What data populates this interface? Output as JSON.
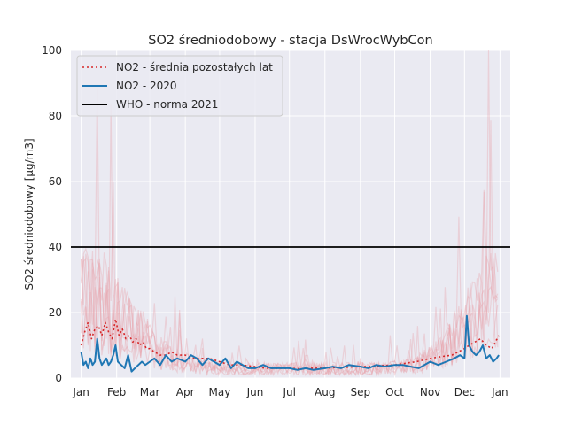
{
  "chart_data": {
    "type": "line",
    "title": "SO2 średniodobowy - stacja DsWrocWybCon",
    "xlabel": "",
    "ylabel": "SO2 średniodobowy [µg/m3]",
    "ylim": [
      0,
      100
    ],
    "xlim": [
      "2019-12-23",
      "2021-01-10"
    ],
    "yticks": [
      0,
      20,
      40,
      60,
      80,
      100
    ],
    "xticks": [
      {
        "date": "2020-01-01",
        "label": "Jan"
      },
      {
        "date": "2020-02-01",
        "label": "Feb"
      },
      {
        "date": "2020-03-01",
        "label": "Mar"
      },
      {
        "date": "2020-04-01",
        "label": "Apr"
      },
      {
        "date": "2020-05-01",
        "label": "May"
      },
      {
        "date": "2020-06-01",
        "label": "Jun"
      },
      {
        "date": "2020-07-01",
        "label": "Jul"
      },
      {
        "date": "2020-08-01",
        "label": "Aug"
      },
      {
        "date": "2020-09-01",
        "label": "Sep"
      },
      {
        "date": "2020-10-01",
        "label": "Oct"
      },
      {
        "date": "2020-11-01",
        "label": "Nov"
      },
      {
        "date": "2020-12-01",
        "label": "Dec"
      },
      {
        "date": "2021-01-01",
        "label": "Jan"
      }
    ],
    "grid": true,
    "legend_position": "top-left",
    "colors": {
      "background": "#eaeaf2",
      "grid": "#ffffff",
      "mean_other_years": "#d62728",
      "year_2020": "#1f77b4",
      "who": "#000000",
      "other_years_faint": "#e8a0a8"
    },
    "hlines": [
      {
        "name": "WHO - norma 2021",
        "y": 40
      }
    ],
    "series": [
      {
        "name": "NO2 - średnia pozostałych lat",
        "style": "dotted",
        "x": [
          "2020-01-01",
          "2020-01-04",
          "2020-01-07",
          "2020-01-10",
          "2020-01-13",
          "2020-01-16",
          "2020-01-19",
          "2020-01-22",
          "2020-01-25",
          "2020-01-28",
          "2020-01-31",
          "2020-02-03",
          "2020-02-06",
          "2020-02-09",
          "2020-02-12",
          "2020-02-15",
          "2020-02-18",
          "2020-02-21",
          "2020-02-24",
          "2020-02-27",
          "2020-03-01",
          "2020-03-05",
          "2020-03-10",
          "2020-03-15",
          "2020-03-20",
          "2020-03-25",
          "2020-04-01",
          "2020-04-08",
          "2020-04-15",
          "2020-04-22",
          "2020-05-01",
          "2020-05-10",
          "2020-05-20",
          "2020-06-01",
          "2020-06-10",
          "2020-06-20",
          "2020-07-01",
          "2020-07-10",
          "2020-07-20",
          "2020-08-01",
          "2020-08-10",
          "2020-08-20",
          "2020-09-01",
          "2020-09-10",
          "2020-09-20",
          "2020-10-01",
          "2020-10-10",
          "2020-10-20",
          "2020-11-01",
          "2020-11-10",
          "2020-11-20",
          "2020-12-01",
          "2020-12-05",
          "2020-12-10",
          "2020-12-15",
          "2020-12-20",
          "2020-12-25",
          "2020-12-31"
        ],
        "y": [
          10,
          14,
          17,
          12,
          15,
          16,
          13,
          17,
          14,
          12,
          18,
          13,
          15,
          12,
          13,
          11,
          12,
          10,
          11,
          9,
          9,
          8,
          7,
          7,
          8,
          7,
          7,
          6,
          6,
          6,
          5,
          4,
          4,
          3.5,
          3,
          3,
          3,
          2.8,
          3,
          3,
          3.2,
          3.3,
          3.5,
          3.5,
          3.8,
          4,
          4.5,
          5,
          6,
          6.5,
          7,
          9,
          10,
          11,
          12,
          10,
          9,
          13
        ]
      },
      {
        "name": "NO2 - 2020",
        "style": "solid",
        "x": [
          "2020-01-01",
          "2020-01-03",
          "2020-01-05",
          "2020-01-07",
          "2020-01-09",
          "2020-01-11",
          "2020-01-13",
          "2020-01-15",
          "2020-01-17",
          "2020-01-19",
          "2020-01-21",
          "2020-01-23",
          "2020-01-25",
          "2020-01-27",
          "2020-01-29",
          "2020-01-31",
          "2020-02-02",
          "2020-02-05",
          "2020-02-08",
          "2020-02-11",
          "2020-02-14",
          "2020-02-17",
          "2020-02-20",
          "2020-02-23",
          "2020-02-26",
          "2020-03-01",
          "2020-03-05",
          "2020-03-10",
          "2020-03-15",
          "2020-03-20",
          "2020-03-25",
          "2020-04-01",
          "2020-04-06",
          "2020-04-11",
          "2020-04-16",
          "2020-04-21",
          "2020-04-26",
          "2020-05-01",
          "2020-05-06",
          "2020-05-11",
          "2020-05-16",
          "2020-05-21",
          "2020-05-26",
          "2020-06-01",
          "2020-06-08",
          "2020-06-15",
          "2020-06-22",
          "2020-07-01",
          "2020-07-08",
          "2020-07-15",
          "2020-07-22",
          "2020-08-01",
          "2020-08-08",
          "2020-08-15",
          "2020-08-22",
          "2020-09-01",
          "2020-09-08",
          "2020-09-15",
          "2020-09-22",
          "2020-10-01",
          "2020-10-08",
          "2020-10-15",
          "2020-10-22",
          "2020-11-01",
          "2020-11-08",
          "2020-11-15",
          "2020-11-22",
          "2020-11-27",
          "2020-12-01",
          "2020-12-03",
          "2020-12-05",
          "2020-12-08",
          "2020-12-11",
          "2020-12-14",
          "2020-12-17",
          "2020-12-20",
          "2020-12-23",
          "2020-12-26",
          "2020-12-29",
          "2020-12-31"
        ],
        "y": [
          8,
          4,
          5,
          3,
          6,
          4,
          5,
          12,
          6,
          4,
          5,
          6,
          4,
          5,
          7,
          10,
          5,
          4,
          3,
          7,
          2,
          3,
          4,
          5,
          4,
          5,
          6,
          4,
          7,
          5,
          6,
          5,
          7,
          6,
          4,
          6,
          5,
          4,
          6,
          3,
          5,
          4,
          3,
          3,
          4,
          3,
          3,
          3,
          2.5,
          3,
          2.5,
          3,
          3.5,
          3,
          4,
          3.5,
          3,
          4,
          3.5,
          4,
          4,
          3.5,
          3,
          5,
          4,
          5,
          6,
          7,
          6,
          19,
          10,
          8,
          7,
          8,
          10,
          6,
          7,
          5,
          6,
          7
        ]
      }
    ]
  },
  "legend": {
    "items": [
      {
        "label": "NO2 - średnia pozostałych lat"
      },
      {
        "label": "NO2 - 2020"
      },
      {
        "label": "WHO - norma 2021"
      }
    ]
  }
}
